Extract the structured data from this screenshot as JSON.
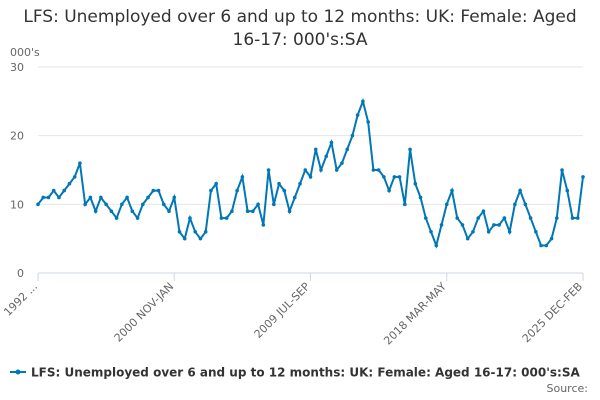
{
  "chart_data": {
    "type": "line",
    "title": "LFS: Unemployed over 6 and up to 12 months: UK: Female: Aged 16-17: 000's:SA",
    "y_label": "000's",
    "source": "Source:",
    "categories": [
      "1992 ...",
      null,
      null,
      null,
      null,
      null,
      null,
      null,
      null,
      null,
      null,
      null,
      null,
      null,
      null,
      null,
      null,
      null,
      null,
      null,
      null,
      null,
      null,
      null,
      null,
      null,
      "2000 NOV-JAN",
      null,
      null,
      null,
      null,
      null,
      null,
      null,
      null,
      null,
      null,
      null,
      null,
      null,
      null,
      null,
      null,
      null,
      null,
      null,
      null,
      null,
      null,
      null,
      null,
      null,
      "2009 JUL-SEP",
      null,
      null,
      null,
      null,
      null,
      null,
      null,
      null,
      null,
      null,
      null,
      null,
      null,
      null,
      null,
      null,
      null,
      null,
      null,
      null,
      null,
      null,
      null,
      null,
      null,
      "2018 MAR-MAY",
      null,
      null,
      null,
      null,
      null,
      null,
      null,
      null,
      null,
      null,
      null,
      null,
      null,
      null,
      null,
      null,
      null,
      null,
      null,
      null,
      null,
      null,
      null,
      null,
      null,
      "2025 DEC-FEB"
    ],
    "series": [
      {
        "name": "LFS: Unemployed over 6 and up to 12 months: UK: Female: Aged 16-17: 000's:SA",
        "color": "#0077b6",
        "values": [
          10,
          11,
          11,
          12,
          11,
          12,
          13,
          14,
          16,
          10,
          11,
          9,
          11,
          10,
          9,
          8,
          10,
          11,
          9,
          8,
          10,
          11,
          12,
          12,
          10,
          9,
          11,
          6,
          5,
          8,
          6,
          5,
          6,
          12,
          13,
          8,
          8,
          9,
          12,
          14,
          9,
          9,
          10,
          7,
          15,
          10,
          13,
          12,
          9,
          11,
          13,
          15,
          14,
          18,
          15,
          17,
          19,
          15,
          16,
          18,
          20,
          23,
          25,
          22,
          15,
          15,
          14,
          12,
          14,
          14,
          10,
          18,
          13,
          11,
          8,
          6,
          4,
          7,
          10,
          12,
          8,
          7,
          5,
          6,
          8,
          9,
          6,
          7,
          7,
          8,
          6,
          10,
          12,
          10,
          8,
          6,
          4,
          4,
          5,
          8,
          15,
          12,
          8,
          8,
          14
        ]
      }
    ],
    "ylim": [
      0,
      30
    ],
    "yticks": [
      0,
      10,
      20,
      30
    ],
    "grid": true
  }
}
